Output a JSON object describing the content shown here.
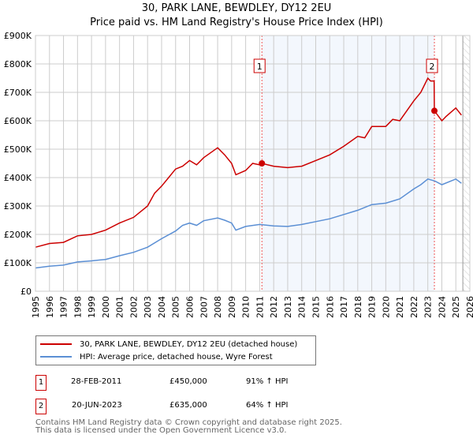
{
  "title": "30, PARK LANE, BEWDLEY, DY12 2EU",
  "subtitle": "Price paid vs. HM Land Registry's House Price Index (HPI)",
  "chart_data": {
    "type": "line",
    "title": "30, PARK LANE, BEWDLEY, DY12 2EU",
    "subtitle": "Price paid vs. HM Land Registry's House Price Index (HPI)",
    "xlim": [
      1995,
      2026
    ],
    "ylim": [
      0,
      900000
    ],
    "x_ticks": [
      "1995",
      "1996",
      "1997",
      "1998",
      "1999",
      "2000",
      "2001",
      "2002",
      "2003",
      "2004",
      "2005",
      "2006",
      "2007",
      "2008",
      "2009",
      "2010",
      "2011",
      "2012",
      "2013",
      "2014",
      "2015",
      "2016",
      "2017",
      "2018",
      "2019",
      "2020",
      "2021",
      "2022",
      "2023",
      "2024",
      "2025",
      "2026"
    ],
    "y_ticks": [
      "£0",
      "£100K",
      "£200K",
      "£300K",
      "£400K",
      "£500K",
      "£600K",
      "£700K",
      "£800K",
      "£900K"
    ],
    "grid": true,
    "series": [
      {
        "name": "30, PARK LANE, BEWDLEY, DY12 2EU (detached house)",
        "color": "#cc0000",
        "x": [
          1995,
          1996,
          1997,
          1998,
          1999,
          2000,
          2001,
          2002,
          2003,
          2003.5,
          2004,
          2004.5,
          2005,
          2005.5,
          2006,
          2006.5,
          2007,
          2008,
          2008.5,
          2009,
          2009.3,
          2010,
          2010.5,
          2011,
          2011.16,
          2012,
          2013,
          2014,
          2015,
          2016,
          2017,
          2018,
          2018.5,
          2019,
          2020,
          2020.5,
          2021,
          2021.5,
          2022,
          2022.5,
          2023,
          2023.2,
          2023.45,
          2023.47,
          2024,
          2024.3,
          2025,
          2025.4
        ],
        "y": [
          155000,
          168000,
          172000,
          195000,
          200000,
          215000,
          240000,
          260000,
          300000,
          345000,
          370000,
          400000,
          430000,
          440000,
          460000,
          445000,
          470000,
          505000,
          480000,
          450000,
          410000,
          425000,
          450000,
          445000,
          450000,
          440000,
          435000,
          440000,
          460000,
          480000,
          510000,
          545000,
          540000,
          580000,
          580000,
          605000,
          600000,
          635000,
          670000,
          700000,
          750000,
          740000,
          740000,
          635000,
          600000,
          615000,
          645000,
          620000
        ]
      },
      {
        "name": "HPI: Average price, detached house, Wyre Forest",
        "color": "#5b8fd4",
        "x": [
          1995,
          1996,
          1997,
          1998,
          1999,
          2000,
          2001,
          2002,
          2003,
          2004,
          2005,
          2005.5,
          2006,
          2006.5,
          2007,
          2008,
          2008.5,
          2009,
          2009.3,
          2010,
          2011,
          2012,
          2013,
          2014,
          2015,
          2016,
          2017,
          2018,
          2019,
          2020,
          2021,
          2022,
          2022.5,
          2023,
          2023.5,
          2024,
          2025,
          2025.4
        ],
        "y": [
          82000,
          88000,
          92000,
          103000,
          107000,
          112000,
          125000,
          137000,
          155000,
          185000,
          212000,
          232000,
          240000,
          232000,
          248000,
          258000,
          250000,
          240000,
          215000,
          228000,
          235000,
          230000,
          228000,
          235000,
          245000,
          255000,
          270000,
          285000,
          305000,
          310000,
          325000,
          360000,
          375000,
          395000,
          388000,
          375000,
          395000,
          380000
        ]
      }
    ],
    "annotations": [
      {
        "label": "1",
        "x": 2011.16,
        "y": 450000
      },
      {
        "label": "2",
        "x": 2023.47,
        "y": 635000
      }
    ],
    "shaded_range": [
      2011.16,
      2023.47
    ],
    "legend_position": "bottom"
  },
  "legend": [
    {
      "label": "30, PARK LANE, BEWDLEY, DY12 2EU (detached house)",
      "color": "#cc0000"
    },
    {
      "label": "HPI: Average price, detached house, Wyre Forest",
      "color": "#5b8fd4"
    }
  ],
  "transactions": [
    {
      "num": "1",
      "date": "28-FEB-2011",
      "price": "£450,000",
      "hpi": "91% ↑ HPI"
    },
    {
      "num": "2",
      "date": "20-JUN-2023",
      "price": "£635,000",
      "hpi": "64% ↑ HPI"
    }
  ],
  "footer": {
    "line1": "Contains HM Land Registry data © Crown copyright and database right 2025.",
    "line2": "This data is licensed under the Open Government Licence v3.0."
  }
}
